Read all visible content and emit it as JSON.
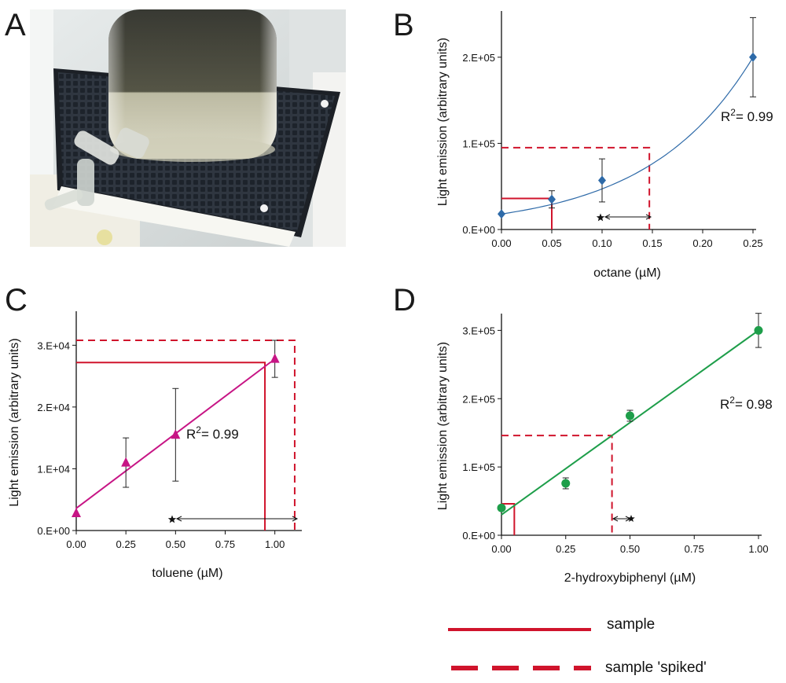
{
  "panels": {
    "A": "A",
    "B": "B",
    "C": "C",
    "D": "D"
  },
  "photo": {
    "description_icon": "beaker-on-magnetic-stirrer-icon"
  },
  "colors": {
    "blue": "#2e6aa8",
    "magenta": "#c71585",
    "green": "#1e9e4a",
    "ref_red": "#d0142c",
    "axis": "#111111"
  },
  "r2_prefix": "R",
  "r2_sup": "2",
  "chart_data": [
    {
      "panel": "B",
      "type": "scatter",
      "xlabel": "octane (µM)",
      "ylabel": "Light emission (arbitrary units)",
      "xlim": [
        0,
        0.25
      ],
      "ylim": [
        0,
        250000
      ],
      "xticks": [
        0,
        0.05,
        0.1,
        0.15,
        0.2,
        0.25
      ],
      "xtick_labels": [
        "0.00",
        "0.05",
        "0.10",
        "0.15",
        "0.20",
        "0.25"
      ],
      "yticks": [
        0,
        100000,
        200000
      ],
      "ytick_labels": [
        "0.E+00",
        "1.E+05",
        "2.E+05"
      ],
      "points": [
        {
          "x": 0.0,
          "y": 18000,
          "err": 0
        },
        {
          "x": 0.05,
          "y": 35000,
          "err": 10000
        },
        {
          "x": 0.1,
          "y": 57000,
          "err": 25000
        },
        {
          "x": 0.25,
          "y": 200000,
          "err": 46000
        }
      ],
      "fit": {
        "kind": "exponential",
        "a": 18000,
        "b": 9.63
      },
      "r2": "= 0.99",
      "sample": {
        "x": 0.05,
        "y": 36000
      },
      "spiked": {
        "x": 0.147,
        "y": 95000
      },
      "marker": "diamond",
      "color": "#2e6aa8"
    },
    {
      "panel": "C",
      "type": "scatter",
      "xlabel": "toluene (µM)",
      "ylabel": "Light emission (arbitrary units)",
      "xlim": [
        0,
        1.12
      ],
      "ylim": [
        0,
        35000
      ],
      "xticks": [
        0,
        0.25,
        0.5,
        0.75,
        1.0
      ],
      "xtick_labels": [
        "0.00",
        "0.25",
        "0.50",
        "0.75",
        "1.00"
      ],
      "yticks": [
        0,
        10000,
        20000,
        30000
      ],
      "ytick_labels": [
        "0.E+00",
        "1.E+04",
        "2.E+04",
        "3.E+04"
      ],
      "points": [
        {
          "x": 0.0,
          "y": 2800,
          "err": 0
        },
        {
          "x": 0.25,
          "y": 11000,
          "err": 4000
        },
        {
          "x": 0.5,
          "y": 15500,
          "err": 7500
        },
        {
          "x": 1.0,
          "y": 27800,
          "err": 3000
        }
      ],
      "fit": {
        "kind": "linear",
        "x0": 0.0,
        "y0": 3600,
        "x1": 0.98,
        "y1": 27300
      },
      "r2": "= 0.99",
      "sample": {
        "x": 0.95,
        "y": 27200
      },
      "spiked": {
        "x": 1.1,
        "y": 30800
      },
      "marker": "triangle",
      "color": "#c71585"
    },
    {
      "panel": "D",
      "type": "scatter",
      "xlabel": "2-hydroxybiphenyl (µM)",
      "ylabel": "Light emission (arbitrary units)",
      "xlim": [
        0,
        1.0
      ],
      "ylim": [
        0,
        320000
      ],
      "xticks": [
        0,
        0.25,
        0.5,
        0.75,
        1.0
      ],
      "xtick_labels": [
        "0.00",
        "0.25",
        "0.50",
        "0.75",
        "1.00"
      ],
      "yticks": [
        0,
        100000,
        200000,
        300000
      ],
      "ytick_labels": [
        "0.E+00",
        "1.E+05",
        "2.E+05",
        "3.E+05"
      ],
      "points": [
        {
          "x": 0.0,
          "y": 40000,
          "err": 0
        },
        {
          "x": 0.25,
          "y": 76000,
          "err": 8000
        },
        {
          "x": 0.5,
          "y": 175000,
          "err": 8000
        },
        {
          "x": 1.0,
          "y": 300000,
          "err": 25000
        }
      ],
      "fit": {
        "kind": "linear",
        "x0": 0.0,
        "y0": 30000,
        "x1": 1.0,
        "y1": 300000
      },
      "r2": "= 0.98",
      "sample": {
        "x": 0.05,
        "y": 46000
      },
      "spiked": {
        "x": 0.43,
        "y": 146000
      },
      "marker": "circle",
      "color": "#1e9e4a"
    }
  ],
  "legend": {
    "sample": "sample",
    "spiked": "sample 'spiked'"
  }
}
